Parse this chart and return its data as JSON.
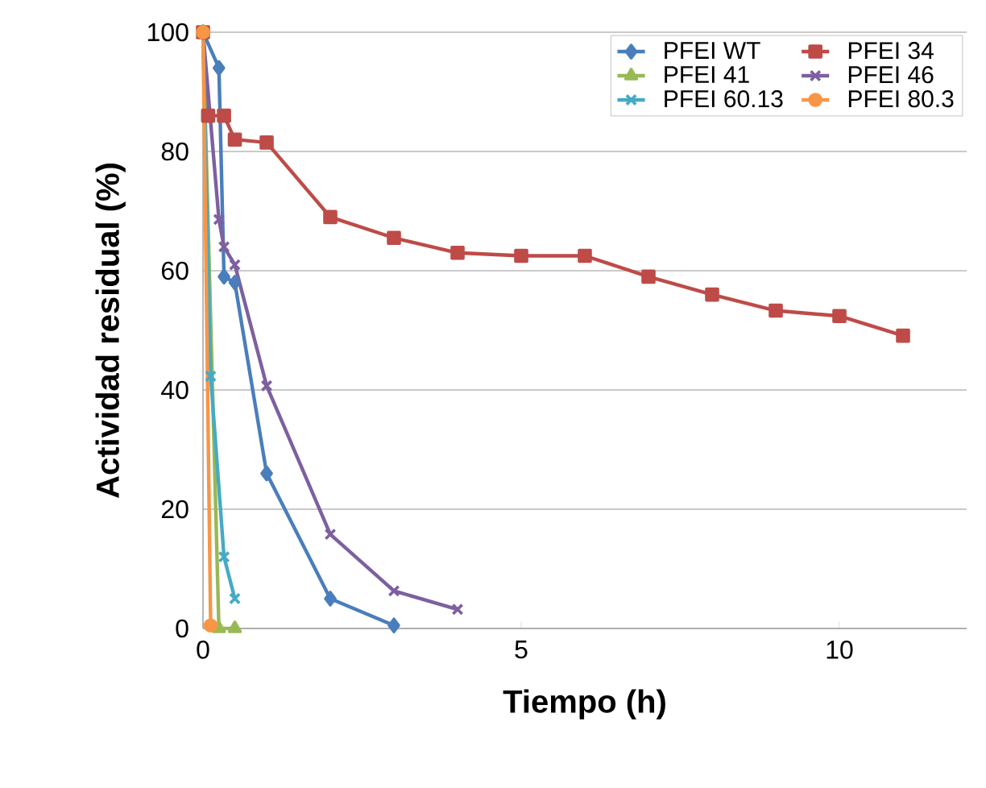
{
  "chart_data": {
    "type": "line",
    "xlabel": "Tiempo (h)",
    "ylabel": "Actividad residual (%)",
    "xlim": [
      0,
      12
    ],
    "ylim": [
      0,
      100
    ],
    "xticks": [
      0,
      5,
      10
    ],
    "yticks": [
      0,
      20,
      40,
      60,
      80,
      100
    ],
    "grid": "y",
    "legend": "top right",
    "line_style": "solid",
    "series": [
      {
        "name": "PFEI WT",
        "color": "#4a7ebb",
        "marker": "diamond",
        "x": [
          0,
          0.25,
          0.33,
          0.5,
          1,
          2,
          3
        ],
        "values": [
          100,
          94,
          59,
          58,
          26,
          5,
          0.5
        ]
      },
      {
        "name": "PFEI 34",
        "color": "#be4b48",
        "marker": "square",
        "x": [
          0,
          0.08,
          0.33,
          0.5,
          1,
          2,
          3,
          4,
          5,
          6,
          7,
          8,
          9,
          10,
          11
        ],
        "values": [
          100,
          86,
          86,
          82,
          81.5,
          69,
          65.5,
          63,
          62.5,
          62.5,
          59,
          56,
          53.3,
          52.4,
          49.1
        ]
      },
      {
        "name": "PFEI 41",
        "color": "#98b954",
        "marker": "triangle",
        "x": [
          0,
          0.25,
          0.5
        ],
        "values": [
          100,
          0,
          0
        ]
      },
      {
        "name": "PFEI 46",
        "color": "#7d60a0",
        "marker": "cross",
        "x": [
          0,
          0.25,
          0.33,
          0.5,
          1,
          2,
          3,
          4
        ],
        "values": [
          100,
          68.6,
          64,
          61,
          40.7,
          15.8,
          6.3,
          3.2
        ]
      },
      {
        "name": "PFEI 60.13",
        "color": "#46aac5",
        "marker": "cross",
        "x": [
          0,
          0.12,
          0.33,
          0.5
        ],
        "values": [
          100,
          42.3,
          12,
          5
        ]
      },
      {
        "name": "PFEI 80.3",
        "color": "#f79646",
        "marker": "circle",
        "x": [
          0,
          0.12
        ],
        "values": [
          100,
          0.5
        ]
      }
    ]
  }
}
